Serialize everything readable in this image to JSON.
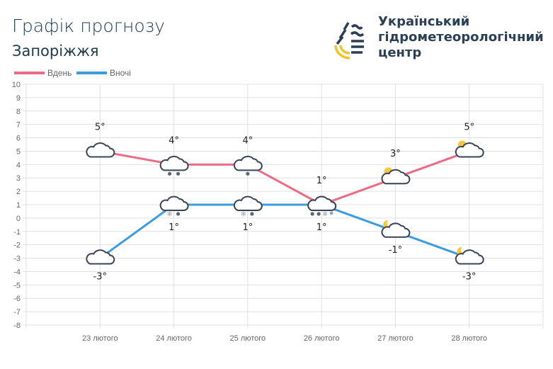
{
  "header": {
    "title": "Графік прогнозу",
    "city": "Запоріжжя",
    "org_lines": [
      "Український",
      "гідрометеорологічний",
      "центр"
    ]
  },
  "colors": {
    "day": "#ec6b85",
    "night": "#3d9ddb",
    "grid": "#e0e0e0",
    "icon": "#3a4454"
  },
  "chart_data": {
    "type": "line",
    "categories": [
      "23 лютого",
      "24 лютого",
      "25 лютого",
      "26 лютого",
      "27 лютого",
      "28 лютого"
    ],
    "series": [
      {
        "name": "Вдень",
        "values": [
          5,
          4,
          4,
          1,
          3,
          5
        ],
        "labels": [
          "5°",
          "4°",
          "4°",
          "1°",
          "3°",
          "5°"
        ],
        "icons": [
          "cloud",
          "cloud-rain",
          "cloud-light-rain",
          "cloud",
          "sun-cloud",
          "sun-cloud"
        ]
      },
      {
        "name": "Вночі",
        "values": [
          -3,
          1,
          1,
          1,
          -1,
          -3
        ],
        "labels": [
          "-3°",
          "1°",
          "1°",
          "1°",
          "-1°",
          "-3°"
        ],
        "icons": [
          "cloud",
          "cloud-sleet",
          "cloud-sleet",
          "cloud-heavy-sleet",
          "moon-cloud",
          "moon-cloud"
        ]
      }
    ],
    "ylim": [
      -8,
      10
    ],
    "yticks": [
      10,
      9,
      8,
      7,
      6,
      5,
      4,
      3,
      2,
      1,
      0,
      -1,
      -2,
      -3,
      -4,
      -5,
      -6,
      -7,
      -8
    ],
    "legend": "top-left",
    "grid": true
  }
}
